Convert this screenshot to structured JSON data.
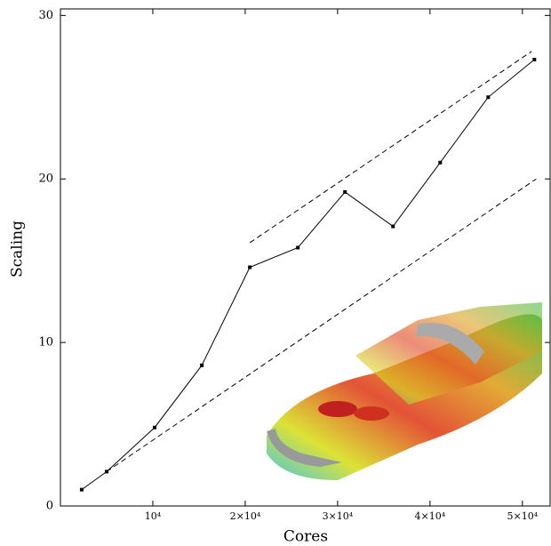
{
  "chart_data": {
    "type": "line",
    "x_label": "Cores",
    "y_label": "Scaling",
    "x": [
      2300,
      5000,
      10200,
      15300,
      20500,
      25700,
      30800,
      36000,
      41100,
      46300,
      51300
    ],
    "values": [
      1.0,
      2.1,
      4.8,
      8.6,
      14.6,
      15.8,
      19.2,
      17.1,
      21.0,
      25.0,
      27.3
    ],
    "color": "#000000",
    "dashed_lines": [
      {
        "x": [
          5000,
          51500
        ],
        "values": [
          2.1,
          20.0
        ]
      },
      {
        "x": [
          20500,
          51000
        ],
        "values": [
          16.1,
          27.8
        ]
      }
    ],
    "xlim": [
      0,
      53000
    ],
    "ylim": [
      0,
      30.4
    ],
    "xticks": [
      {
        "value": 10000,
        "label": "10⁴"
      },
      {
        "value": 20000,
        "label": "2×10⁴"
      },
      {
        "value": 30000,
        "label": "3×10⁴"
      },
      {
        "value": 40000,
        "label": "4×10⁴"
      },
      {
        "value": 50000,
        "label": "5×10⁴"
      }
    ],
    "yticks": [
      0,
      10,
      20,
      30
    ]
  }
}
